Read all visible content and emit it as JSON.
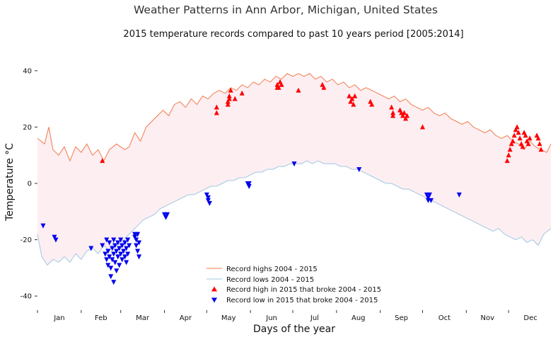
{
  "chart_data": {
    "type": "line",
    "suptitle": "Weather Patterns in Ann Arbor, Michigan, United States",
    "title": "2015 temperature records compared to past 10 years period [2005:2014]",
    "xlabel": "Days of the year",
    "ylabel": "Temperature °C",
    "xlim": [
      1,
      365
    ],
    "ylim": [
      -45,
      45
    ],
    "yticks": [
      -40,
      -20,
      0,
      20,
      40
    ],
    "month_labels": [
      "Jan",
      "Feb",
      "Mar",
      "Apr",
      "May",
      "Jun",
      "Jul",
      "Aug",
      "Sep",
      "Oct",
      "Nov",
      "Dec"
    ],
    "month_days": [
      31,
      28,
      31,
      30,
      31,
      30,
      31,
      31,
      30,
      31,
      30,
      31
    ],
    "grid": false,
    "legend_position": "lower-center",
    "legend": {
      "highs_line": "Record highs 2004 - 2015",
      "lows_line": "Record lows 2004 - 2015",
      "high_markers": "Record high in 2015 that broke 2004 - 2015",
      "low_markers": "Record low in 2015 that broke 2004 - 2015"
    },
    "colors": {
      "high_line": "#f07b4a",
      "low_line": "#9ec9e2",
      "fill": "#fdeef2",
      "high_marker": "#ff0000",
      "low_marker": "#0000ee",
      "text": "#333333"
    },
    "series": [
      {
        "name": "Record highs 2004 - 2015",
        "kind": "line",
        "points": [
          [
            1,
            16
          ],
          [
            6,
            14
          ],
          [
            9,
            20
          ],
          [
            12,
            12
          ],
          [
            16,
            10
          ],
          [
            20,
            13
          ],
          [
            24,
            8
          ],
          [
            28,
            13
          ],
          [
            32,
            11
          ],
          [
            36,
            14
          ],
          [
            40,
            10
          ],
          [
            44,
            12
          ],
          [
            48,
            8
          ],
          [
            52,
            12
          ],
          [
            57,
            14
          ],
          [
            60,
            13
          ],
          [
            63,
            12
          ],
          [
            66,
            13
          ],
          [
            70,
            18
          ],
          [
            74,
            15
          ],
          [
            78,
            20
          ],
          [
            82,
            22
          ],
          [
            86,
            24
          ],
          [
            90,
            26
          ],
          [
            94,
            24
          ],
          [
            98,
            28
          ],
          [
            102,
            29
          ],
          [
            106,
            27
          ],
          [
            110,
            30
          ],
          [
            114,
            28
          ],
          [
            118,
            31
          ],
          [
            122,
            30
          ],
          [
            126,
            32
          ],
          [
            130,
            33
          ],
          [
            134,
            32
          ],
          [
            138,
            34
          ],
          [
            142,
            33
          ],
          [
            146,
            35
          ],
          [
            150,
            34
          ],
          [
            154,
            36
          ],
          [
            158,
            35
          ],
          [
            162,
            37
          ],
          [
            166,
            36
          ],
          [
            170,
            38
          ],
          [
            174,
            37
          ],
          [
            178,
            39
          ],
          [
            182,
            38
          ],
          [
            186,
            39
          ],
          [
            190,
            38
          ],
          [
            194,
            39
          ],
          [
            198,
            37
          ],
          [
            202,
            38
          ],
          [
            206,
            36
          ],
          [
            210,
            37
          ],
          [
            214,
            35
          ],
          [
            218,
            36
          ],
          [
            222,
            34
          ],
          [
            226,
            35
          ],
          [
            230,
            33
          ],
          [
            234,
            34
          ],
          [
            238,
            33
          ],
          [
            242,
            32
          ],
          [
            246,
            31
          ],
          [
            250,
            30
          ],
          [
            254,
            31
          ],
          [
            258,
            29
          ],
          [
            262,
            30
          ],
          [
            266,
            28
          ],
          [
            270,
            27
          ],
          [
            274,
            26
          ],
          [
            278,
            27
          ],
          [
            282,
            25
          ],
          [
            286,
            24
          ],
          [
            290,
            25
          ],
          [
            294,
            23
          ],
          [
            298,
            22
          ],
          [
            302,
            21
          ],
          [
            306,
            22
          ],
          [
            310,
            20
          ],
          [
            314,
            19
          ],
          [
            318,
            18
          ],
          [
            322,
            19
          ],
          [
            326,
            17
          ],
          [
            330,
            16
          ],
          [
            334,
            17
          ],
          [
            338,
            15
          ],
          [
            342,
            14
          ],
          [
            346,
            12
          ],
          [
            350,
            15
          ],
          [
            354,
            13
          ],
          [
            358,
            12
          ],
          [
            362,
            11
          ],
          [
            365,
            14
          ]
        ]
      },
      {
        "name": "Record lows 2004 - 2015",
        "kind": "line",
        "points": [
          [
            1,
            -18
          ],
          [
            4,
            -26
          ],
          [
            8,
            -29
          ],
          [
            12,
            -27
          ],
          [
            16,
            -28
          ],
          [
            20,
            -26
          ],
          [
            24,
            -28
          ],
          [
            28,
            -25
          ],
          [
            32,
            -27
          ],
          [
            36,
            -24
          ],
          [
            40,
            -23
          ],
          [
            44,
            -25
          ],
          [
            48,
            -22
          ],
          [
            52,
            -24
          ],
          [
            56,
            -20
          ],
          [
            60,
            -22
          ],
          [
            64,
            -19
          ],
          [
            68,
            -17
          ],
          [
            72,
            -15
          ],
          [
            76,
            -13
          ],
          [
            80,
            -12
          ],
          [
            84,
            -11
          ],
          [
            88,
            -9
          ],
          [
            92,
            -8
          ],
          [
            96,
            -7
          ],
          [
            100,
            -6
          ],
          [
            104,
            -5
          ],
          [
            108,
            -4
          ],
          [
            112,
            -4
          ],
          [
            116,
            -3
          ],
          [
            120,
            -2
          ],
          [
            124,
            -1
          ],
          [
            128,
            -1
          ],
          [
            132,
            0
          ],
          [
            136,
            1
          ],
          [
            140,
            1
          ],
          [
            144,
            2
          ],
          [
            148,
            2
          ],
          [
            152,
            3
          ],
          [
            156,
            4
          ],
          [
            160,
            4
          ],
          [
            164,
            5
          ],
          [
            168,
            5
          ],
          [
            172,
            6
          ],
          [
            176,
            6
          ],
          [
            180,
            7
          ],
          [
            184,
            7
          ],
          [
            188,
            7
          ],
          [
            192,
            8
          ],
          [
            196,
            7
          ],
          [
            200,
            8
          ],
          [
            204,
            7
          ],
          [
            208,
            7
          ],
          [
            212,
            7
          ],
          [
            216,
            6
          ],
          [
            220,
            6
          ],
          [
            224,
            5
          ],
          [
            228,
            5
          ],
          [
            232,
            4
          ],
          [
            236,
            3
          ],
          [
            240,
            2
          ],
          [
            244,
            1
          ],
          [
            248,
            0
          ],
          [
            252,
            0
          ],
          [
            256,
            -1
          ],
          [
            260,
            -2
          ],
          [
            264,
            -2
          ],
          [
            268,
            -3
          ],
          [
            272,
            -4
          ],
          [
            276,
            -5
          ],
          [
            280,
            -6
          ],
          [
            284,
            -7
          ],
          [
            288,
            -8
          ],
          [
            292,
            -9
          ],
          [
            296,
            -10
          ],
          [
            300,
            -11
          ],
          [
            304,
            -12
          ],
          [
            308,
            -13
          ],
          [
            312,
            -14
          ],
          [
            316,
            -15
          ],
          [
            320,
            -16
          ],
          [
            324,
            -17
          ],
          [
            328,
            -16
          ],
          [
            332,
            -18
          ],
          [
            336,
            -19
          ],
          [
            340,
            -20
          ],
          [
            344,
            -19
          ],
          [
            348,
            -21
          ],
          [
            352,
            -20
          ],
          [
            356,
            -22
          ],
          [
            360,
            -18
          ],
          [
            365,
            -16
          ]
        ]
      },
      {
        "name": "Record high in 2015 that broke 2004 - 2015",
        "kind": "scatter",
        "points": [
          [
            47,
            8
          ],
          [
            128,
            27
          ],
          [
            128,
            25
          ],
          [
            136,
            29
          ],
          [
            136,
            28
          ],
          [
            137,
            30
          ],
          [
            137,
            31
          ],
          [
            138,
            33
          ],
          [
            141,
            30
          ],
          [
            146,
            32
          ],
          [
            171,
            34
          ],
          [
            171,
            35
          ],
          [
            172,
            34
          ],
          [
            173,
            36
          ],
          [
            174,
            35
          ],
          [
            186,
            33
          ],
          [
            203,
            35
          ],
          [
            204,
            34
          ],
          [
            222,
            31
          ],
          [
            223,
            29
          ],
          [
            224,
            30
          ],
          [
            225,
            28
          ],
          [
            226,
            31
          ],
          [
            237,
            29
          ],
          [
            238,
            28
          ],
          [
            252,
            27
          ],
          [
            253,
            25
          ],
          [
            253,
            24
          ],
          [
            258,
            26
          ],
          [
            259,
            25
          ],
          [
            260,
            24
          ],
          [
            261,
            25
          ],
          [
            262,
            23
          ],
          [
            263,
            24
          ],
          [
            274,
            20
          ],
          [
            334,
            8
          ],
          [
            335,
            10
          ],
          [
            336,
            12
          ],
          [
            337,
            14
          ],
          [
            338,
            15
          ],
          [
            339,
            17
          ],
          [
            340,
            19
          ],
          [
            341,
            20
          ],
          [
            342,
            18
          ],
          [
            343,
            16
          ],
          [
            344,
            14
          ],
          [
            345,
            13
          ],
          [
            346,
            18
          ],
          [
            347,
            17
          ],
          [
            348,
            15
          ],
          [
            349,
            14
          ],
          [
            350,
            16
          ],
          [
            355,
            17
          ],
          [
            356,
            16
          ],
          [
            357,
            14
          ],
          [
            358,
            12
          ]
        ]
      },
      {
        "name": "Record low in 2015 that broke 2004 - 2015",
        "kind": "scatter",
        "points": [
          [
            5,
            -15
          ],
          [
            13,
            -19
          ],
          [
            14,
            -20
          ],
          [
            39,
            -23
          ],
          [
            47,
            -22
          ],
          [
            49,
            -25
          ],
          [
            50,
            -20
          ],
          [
            50,
            -27
          ],
          [
            51,
            -24
          ],
          [
            51,
            -29
          ],
          [
            52,
            -21
          ],
          [
            52,
            -26
          ],
          [
            53,
            -30
          ],
          [
            53,
            -33
          ],
          [
            54,
            -23
          ],
          [
            54,
            -27
          ],
          [
            55,
            -20
          ],
          [
            55,
            -25
          ],
          [
            55,
            -35
          ],
          [
            56,
            -22
          ],
          [
            56,
            -28
          ],
          [
            57,
            -24
          ],
          [
            57,
            -31
          ],
          [
            58,
            -21
          ],
          [
            58,
            -26
          ],
          [
            59,
            -23
          ],
          [
            59,
            -29
          ],
          [
            60,
            -20
          ],
          [
            60,
            -25
          ],
          [
            61,
            -22
          ],
          [
            61,
            -27
          ],
          [
            62,
            -24
          ],
          [
            63,
            -21
          ],
          [
            63,
            -26
          ],
          [
            64,
            -23
          ],
          [
            64,
            -28
          ],
          [
            65,
            -20
          ],
          [
            65,
            -25
          ],
          [
            66,
            -22
          ],
          [
            70,
            -18
          ],
          [
            70,
            -19
          ],
          [
            71,
            -20
          ],
          [
            71,
            -22
          ],
          [
            72,
            -18
          ],
          [
            72,
            -24
          ],
          [
            73,
            -21
          ],
          [
            73,
            -26
          ],
          [
            91,
            -11
          ],
          [
            92,
            -12
          ],
          [
            93,
            -11
          ],
          [
            121,
            -4
          ],
          [
            122,
            -5
          ],
          [
            122,
            -6
          ],
          [
            123,
            -7
          ],
          [
            150,
            0
          ],
          [
            151,
            -1
          ],
          [
            151,
            0
          ],
          [
            183,
            7
          ],
          [
            229,
            5
          ],
          [
            277,
            -4
          ],
          [
            278,
            -5
          ],
          [
            278,
            -6
          ],
          [
            279,
            -4
          ],
          [
            280,
            -6
          ],
          [
            300,
            -4
          ]
        ]
      }
    ]
  }
}
